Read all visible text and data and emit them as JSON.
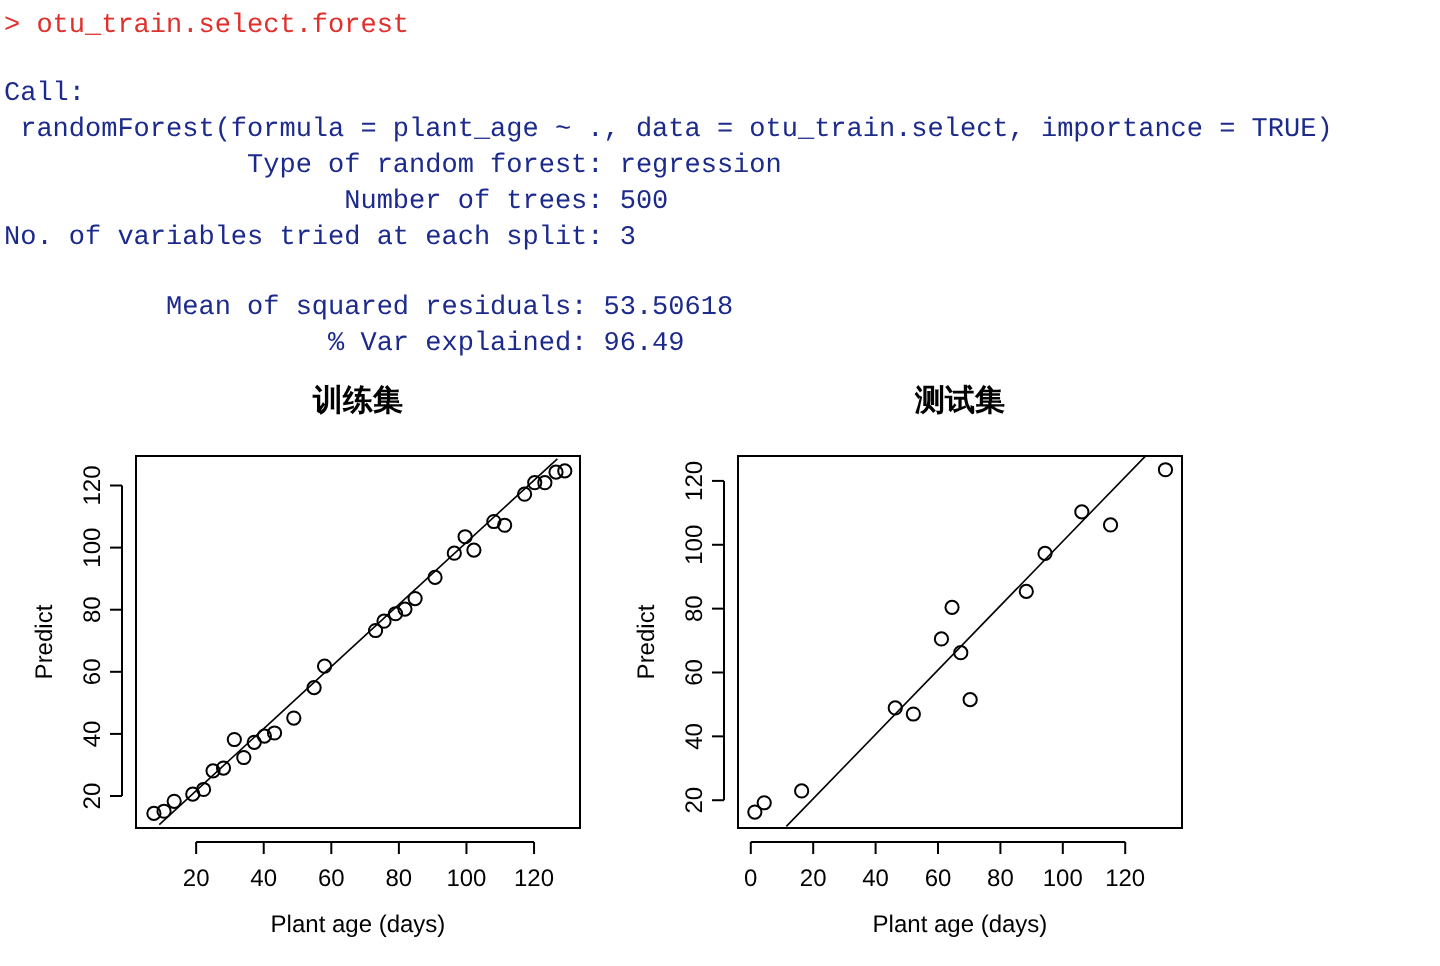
{
  "chart_data": [
    {
      "type": "scatter",
      "title": "训练集",
      "xlabel": "Plant age (days)",
      "ylabel": "Predict",
      "annotations": [
        "> otu_train.select.forest",
        "Call:",
        " randomForest(formula = plant_age ~ ., data = otu_train.select, importance = TRUE)",
        "               Type of random forest: regression",
        "                     Number of trees: 500",
        "No. of variables tried at each split: 3",
        "          Mean of squared residuals: 53.50618",
        "                    % Var explained: 96.49"
      ],
      "xlim": [
        2.2,
        133.6
      ],
      "ylim": [
        9.7,
        129.5
      ],
      "xticks": [
        20,
        40,
        60,
        80,
        100,
        120
      ],
      "yticks": [
        20,
        40,
        60,
        80,
        100,
        120
      ],
      "series": [
        {
          "marker": "circle",
          "color": "#000000",
          "x": [
            7.5,
            10.5,
            13.5,
            19,
            22.2,
            25,
            28.1,
            31.3,
            34.1,
            37.2,
            40.2,
            43.2,
            48.9,
            54.9,
            58,
            73.1,
            75.6,
            79,
            81.8,
            84.8,
            90.7,
            96.4,
            99.6,
            102.2,
            108.1,
            111.3,
            117.2,
            120.2,
            123.2,
            126.5,
            129.1
          ],
          "values": [
            14.4,
            15.1,
            18.3,
            20.6,
            22.1,
            28.1,
            29,
            38.2,
            32.4,
            37.3,
            39.3,
            40.3,
            45.1,
            54.9,
            61.8,
            73.3,
            76.3,
            78.7,
            80.2,
            83.6,
            90.4,
            98.2,
            103.5,
            99.2,
            108.4,
            107.2,
            117.2,
            120.9,
            120.9,
            124.3,
            124.7
          ]
        },
        {
          "type": "line",
          "color": "#000000",
          "x": [
            9.1,
            126.9
          ],
          "values": [
            10.8,
            128.6
          ]
        }
      ]
    },
    {
      "type": "scatter",
      "title": "测试集",
      "xlabel": "Plant age (days)",
      "ylabel": "Predict",
      "xlim": [
        -4.1,
        138.2
      ],
      "ylim": [
        11.3,
        127.8
      ],
      "xticks": [
        0,
        20,
        40,
        60,
        80,
        100,
        120
      ],
      "yticks": [
        20,
        40,
        60,
        80,
        100,
        120
      ],
      "series": [
        {
          "marker": "circle",
          "color": "#000000",
          "x": [
            1.3,
            4.3,
            16.3,
            46.3,
            52.1,
            61.1,
            64.5,
            67.3,
            70.3,
            88.3,
            94.3,
            106.1,
            115.3,
            132.9
          ],
          "values": [
            16.3,
            19.2,
            22.9,
            48.9,
            47,
            70.5,
            80.4,
            66.2,
            51.5,
            85.4,
            97.3,
            110.3,
            106.2,
            123.5
          ]
        },
        {
          "type": "line",
          "color": "#000000",
          "x": [
            11.4,
            126.4
          ],
          "values": [
            11.8,
            127.7
          ]
        }
      ]
    }
  ]
}
